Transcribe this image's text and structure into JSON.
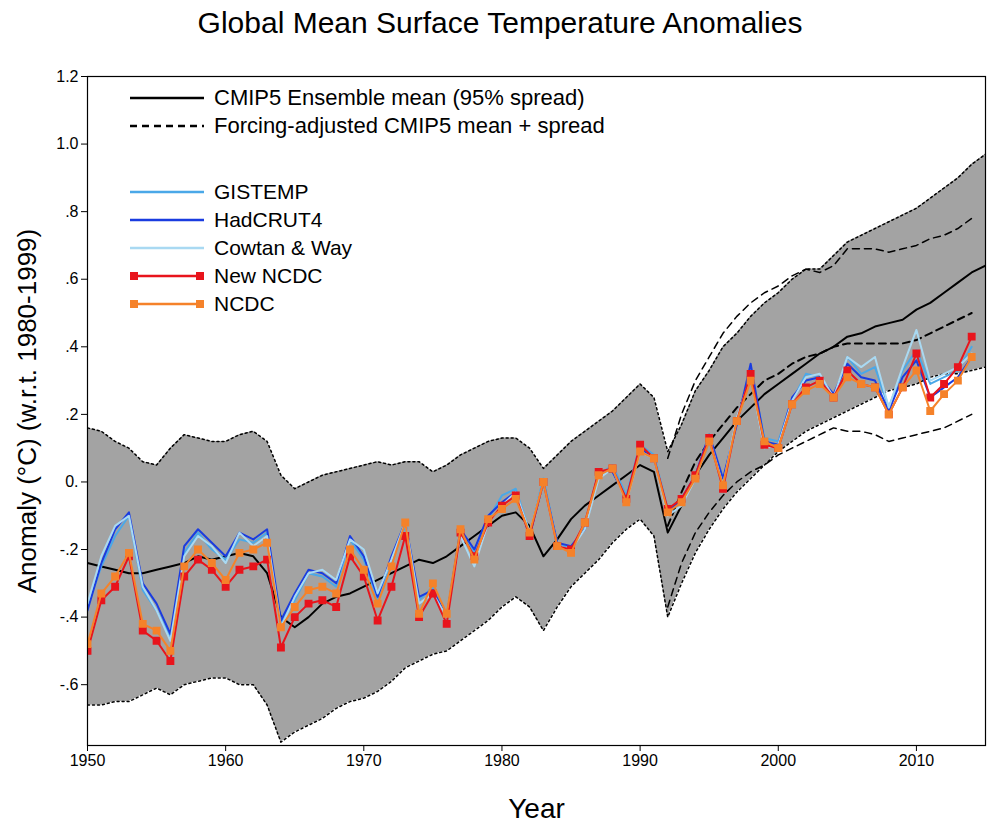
{
  "chart_data": {
    "type": "line",
    "title": "Global Mean Surface Temperature Anomalies",
    "x_label": "Year",
    "y_label": "Anomaly (°C) (w.r.t. 1980-1999)",
    "xlim": [
      1950,
      2015
    ],
    "xticks": [
      1950,
      1960,
      1970,
      1980,
      1990,
      2000,
      2010
    ],
    "ylim": [
      -0.78,
      1.2
    ],
    "yticks": [
      {
        "value": -0.6,
        "label": "-.6"
      },
      {
        "value": -0.4,
        "label": "-.4"
      },
      {
        "value": -0.2,
        "label": "-.2"
      },
      {
        "value": 0,
        "label": "0."
      },
      {
        "value": 0.2,
        "label": ".2"
      },
      {
        "value": 0.4,
        "label": ".4"
      },
      {
        "value": 0.6,
        "label": ".6"
      },
      {
        "value": 0.8,
        "label": ".8"
      },
      {
        "value": 1.0,
        "label": "1.0"
      },
      1.2
    ],
    "x": [
      1950,
      1951,
      1952,
      1953,
      1954,
      1955,
      1956,
      1957,
      1958,
      1959,
      1960,
      1961,
      1962,
      1963,
      1964,
      1965,
      1966,
      1967,
      1968,
      1969,
      1970,
      1971,
      1972,
      1973,
      1974,
      1975,
      1976,
      1977,
      1978,
      1979,
      1980,
      1981,
      1982,
      1983,
      1984,
      1985,
      1986,
      1987,
      1988,
      1989,
      1990,
      1991,
      1992,
      1993,
      1994,
      1995,
      1996,
      1997,
      1998,
      1999,
      2000,
      2001,
      2002,
      2003,
      2004,
      2005,
      2006,
      2007,
      2008,
      2009,
      2010,
      2011,
      2012,
      2013,
      2014,
      2015
    ],
    "series": [
      {
        "name": "CMIP5 Ensemble mean (95% spread)",
        "color": "#000000",
        "line_style": "solid",
        "values": [
          -0.24,
          -0.25,
          -0.26,
          -0.27,
          -0.27,
          -0.26,
          -0.25,
          -0.24,
          -0.22,
          -0.23,
          -0.22,
          -0.21,
          -0.22,
          -0.27,
          -0.4,
          -0.43,
          -0.4,
          -0.36,
          -0.34,
          -0.33,
          -0.31,
          -0.29,
          -0.27,
          -0.25,
          -0.23,
          -0.24,
          -0.22,
          -0.19,
          -0.16,
          -0.13,
          -0.1,
          -0.09,
          -0.13,
          -0.22,
          -0.17,
          -0.11,
          -0.07,
          -0.04,
          -0.01,
          0.02,
          0.05,
          0.03,
          -0.15,
          -0.07,
          0.02,
          0.08,
          0.13,
          0.18,
          0.22,
          0.26,
          0.29,
          0.32,
          0.35,
          0.38,
          0.4,
          0.43,
          0.44,
          0.46,
          0.47,
          0.48,
          0.51,
          0.53,
          0.56,
          0.59,
          0.62,
          0.64
        ],
        "lower": [
          -0.66,
          -0.66,
          -0.65,
          -0.65,
          -0.63,
          -0.61,
          -0.63,
          -0.6,
          -0.59,
          -0.58,
          -0.58,
          -0.6,
          -0.6,
          -0.66,
          -0.77,
          -0.74,
          -0.72,
          -0.7,
          -0.67,
          -0.65,
          -0.64,
          -0.62,
          -0.59,
          -0.55,
          -0.53,
          -0.51,
          -0.5,
          -0.47,
          -0.44,
          -0.41,
          -0.37,
          -0.34,
          -0.37,
          -0.44,
          -0.37,
          -0.31,
          -0.27,
          -0.23,
          -0.18,
          -0.14,
          -0.11,
          -0.16,
          -0.4,
          -0.3,
          -0.21,
          -0.14,
          -0.08,
          -0.03,
          0.01,
          0.05,
          0.09,
          0.12,
          0.15,
          0.17,
          0.19,
          0.21,
          0.23,
          0.25,
          0.27,
          0.28,
          0.29,
          0.31,
          0.32,
          0.32,
          0.33,
          0.34
        ],
        "upper": [
          0.16,
          0.15,
          0.12,
          0.1,
          0.06,
          0.05,
          0.1,
          0.14,
          0.13,
          0.12,
          0.12,
          0.14,
          0.15,
          0.12,
          0.02,
          -0.02,
          0.0,
          0.02,
          0.03,
          0.04,
          0.05,
          0.06,
          0.05,
          0.06,
          0.06,
          0.03,
          0.05,
          0.08,
          0.1,
          0.12,
          0.13,
          0.13,
          0.1,
          0.04,
          0.08,
          0.12,
          0.15,
          0.18,
          0.21,
          0.25,
          0.29,
          0.25,
          0.09,
          0.17,
          0.27,
          0.33,
          0.4,
          0.44,
          0.49,
          0.53,
          0.56,
          0.6,
          0.63,
          0.63,
          0.67,
          0.71,
          0.73,
          0.75,
          0.77,
          0.79,
          0.81,
          0.84,
          0.87,
          0.9,
          0.94,
          0.97
        ]
      },
      {
        "name": "Forcing-adjusted CMIP5 mean + spread",
        "color": "#000000",
        "line_style": "dashed",
        "values": [
          null,
          null,
          null,
          null,
          null,
          null,
          null,
          null,
          null,
          null,
          null,
          null,
          null,
          null,
          null,
          null,
          null,
          null,
          null,
          null,
          null,
          null,
          null,
          null,
          null,
          null,
          null,
          null,
          null,
          null,
          null,
          null,
          null,
          null,
          null,
          null,
          null,
          null,
          null,
          null,
          null,
          null,
          -0.13,
          -0.03,
          0.06,
          0.12,
          0.17,
          0.22,
          0.26,
          0.3,
          0.32,
          0.35,
          0.37,
          0.38,
          0.4,
          0.41,
          0.41,
          0.41,
          0.41,
          0.41,
          0.42,
          0.44,
          0.46,
          0.48,
          0.5,
          null
        ],
        "lower": [
          null,
          null,
          null,
          null,
          null,
          null,
          null,
          null,
          null,
          null,
          null,
          null,
          null,
          null,
          null,
          null,
          null,
          null,
          null,
          null,
          null,
          null,
          null,
          null,
          null,
          null,
          null,
          null,
          null,
          null,
          null,
          null,
          null,
          null,
          null,
          null,
          null,
          null,
          null,
          null,
          null,
          null,
          -0.37,
          -0.24,
          -0.15,
          -0.09,
          -0.04,
          0.0,
          0.03,
          0.05,
          0.08,
          0.1,
          0.12,
          0.14,
          0.16,
          0.15,
          0.15,
          0.14,
          0.12,
          0.13,
          0.14,
          0.15,
          0.16,
          0.18,
          0.2,
          null
        ],
        "upper": [
          null,
          null,
          null,
          null,
          null,
          null,
          null,
          null,
          null,
          null,
          null,
          null,
          null,
          null,
          null,
          null,
          null,
          null,
          null,
          null,
          null,
          null,
          null,
          null,
          null,
          null,
          null,
          null,
          null,
          null,
          null,
          null,
          null,
          null,
          null,
          null,
          null,
          null,
          null,
          null,
          null,
          null,
          0.07,
          0.2,
          0.3,
          0.37,
          0.44,
          0.49,
          0.53,
          0.56,
          0.58,
          0.61,
          0.63,
          0.62,
          0.64,
          0.69,
          0.69,
          0.69,
          0.68,
          0.69,
          0.7,
          0.72,
          0.73,
          0.75,
          0.78,
          null
        ]
      },
      {
        "name": "GISTEMP",
        "color": "#4aa8e8",
        "line_style": "solid",
        "values": [
          -0.37,
          -0.25,
          -0.16,
          -0.1,
          -0.32,
          -0.38,
          -0.46,
          -0.21,
          -0.15,
          -0.2,
          -0.23,
          -0.17,
          -0.18,
          -0.15,
          -0.42,
          -0.35,
          -0.27,
          -0.28,
          -0.31,
          -0.17,
          -0.23,
          -0.35,
          -0.24,
          -0.13,
          -0.35,
          -0.31,
          -0.4,
          -0.15,
          -0.21,
          -0.11,
          -0.04,
          -0.02,
          -0.15,
          0.01,
          -0.18,
          -0.2,
          -0.13,
          0.02,
          0.05,
          -0.04,
          0.11,
          0.08,
          -0.08,
          -0.06,
          0.01,
          0.12,
          0.0,
          0.18,
          0.33,
          0.13,
          0.12,
          0.24,
          0.32,
          0.31,
          0.24,
          0.37,
          0.32,
          0.34,
          0.22,
          0.33,
          0.39,
          0.29,
          0.31,
          0.33,
          0.4,
          null
        ]
      },
      {
        "name": "HadCRUT4",
        "color": "#1a3ce0",
        "line_style": "solid",
        "values": [
          -0.38,
          -0.24,
          -0.14,
          -0.09,
          -0.3,
          -0.36,
          -0.45,
          -0.19,
          -0.14,
          -0.18,
          -0.22,
          -0.15,
          -0.17,
          -0.14,
          -0.41,
          -0.33,
          -0.26,
          -0.27,
          -0.3,
          -0.16,
          -0.22,
          -0.34,
          -0.22,
          -0.12,
          -0.34,
          -0.32,
          -0.4,
          -0.14,
          -0.2,
          -0.1,
          -0.06,
          -0.03,
          -0.16,
          0.0,
          -0.18,
          -0.19,
          -0.14,
          0.03,
          0.03,
          -0.05,
          0.1,
          0.07,
          -0.09,
          -0.05,
          0.02,
          0.14,
          0.01,
          0.17,
          0.35,
          0.12,
          0.11,
          0.25,
          0.3,
          0.31,
          0.26,
          0.35,
          0.31,
          0.3,
          0.21,
          0.31,
          0.36,
          0.25,
          0.28,
          0.31,
          0.37,
          null
        ]
      },
      {
        "name": "Cowtan & Way",
        "color": "#a9d9f2",
        "line_style": "solid",
        "values": [
          -0.36,
          -0.22,
          -0.13,
          -0.1,
          -0.31,
          -0.38,
          -0.47,
          -0.22,
          -0.16,
          -0.19,
          -0.24,
          -0.15,
          -0.19,
          -0.16,
          -0.43,
          -0.34,
          -0.27,
          -0.26,
          -0.29,
          -0.17,
          -0.2,
          -0.33,
          -0.23,
          -0.12,
          -0.36,
          -0.33,
          -0.4,
          -0.16,
          -0.25,
          -0.12,
          -0.07,
          -0.03,
          -0.15,
          0.0,
          -0.19,
          -0.2,
          -0.14,
          0.01,
          0.04,
          -0.06,
          0.09,
          0.07,
          -0.1,
          -0.07,
          0.01,
          0.13,
          -0.01,
          0.19,
          0.31,
          0.1,
          0.11,
          0.24,
          0.31,
          0.32,
          0.25,
          0.37,
          0.34,
          0.37,
          0.22,
          0.34,
          0.45,
          0.3,
          0.32,
          0.34,
          0.38,
          null
        ]
      },
      {
        "name": "New NCDC",
        "color": "#e8141c",
        "line_style": "solid",
        "marker": "square",
        "values": [
          -0.5,
          -0.35,
          -0.31,
          -0.22,
          -0.44,
          -0.47,
          -0.53,
          -0.28,
          -0.23,
          -0.26,
          -0.31,
          -0.26,
          -0.25,
          -0.23,
          -0.49,
          -0.4,
          -0.36,
          -0.35,
          -0.37,
          -0.22,
          -0.28,
          -0.41,
          -0.31,
          -0.16,
          -0.4,
          -0.33,
          -0.42,
          -0.15,
          -0.22,
          -0.12,
          -0.07,
          -0.04,
          -0.16,
          0.0,
          -0.19,
          -0.2,
          -0.12,
          0.03,
          0.04,
          -0.05,
          0.11,
          0.07,
          -0.08,
          -0.05,
          0.02,
          0.13,
          -0.02,
          0.18,
          0.32,
          0.11,
          0.1,
          0.23,
          0.28,
          0.3,
          0.25,
          0.33,
          0.29,
          0.28,
          0.2,
          0.28,
          0.38,
          0.25,
          0.29,
          0.34,
          0.43,
          null
        ]
      },
      {
        "name": "NCDC",
        "color": "#f5822a",
        "line_style": "solid",
        "marker": "square",
        "values": [
          -0.48,
          -0.33,
          -0.28,
          -0.21,
          -0.42,
          -0.44,
          -0.5,
          -0.25,
          -0.2,
          -0.24,
          -0.29,
          -0.21,
          -0.2,
          -0.18,
          -0.43,
          -0.37,
          -0.32,
          -0.31,
          -0.33,
          -0.2,
          -0.26,
          -0.36,
          -0.25,
          -0.12,
          -0.39,
          -0.3,
          -0.39,
          -0.14,
          -0.23,
          -0.11,
          -0.08,
          -0.05,
          -0.15,
          0.0,
          -0.19,
          -0.21,
          -0.12,
          0.02,
          0.04,
          -0.06,
          0.09,
          0.07,
          -0.09,
          -0.06,
          0.01,
          0.12,
          -0.01,
          0.18,
          0.3,
          0.12,
          0.1,
          0.23,
          0.27,
          0.29,
          0.25,
          0.31,
          0.29,
          0.28,
          0.2,
          0.28,
          0.33,
          0.21,
          0.26,
          0.3,
          0.37,
          null
        ]
      }
    ]
  }
}
